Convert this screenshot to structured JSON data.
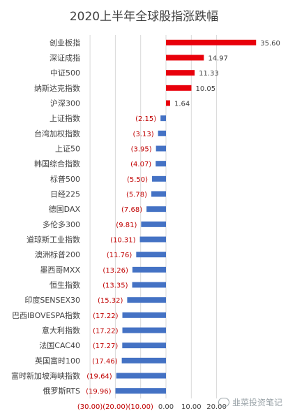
{
  "chart_data": {
    "type": "bar",
    "orientation": "horizontal",
    "title": "2020上半年全球股指涨跌幅",
    "categories": [
      "创业板指",
      "深证成指",
      "中证500",
      "纳斯达克指数",
      "沪深300",
      "上证指数",
      "台湾加权指数",
      "上证50",
      "韩国综合指数",
      "标普500",
      "日经225",
      "德国DAX",
      "多伦多300",
      "道琼斯工业指数",
      "澳洲标普200",
      "墨西哥MXX",
      "恒生指数",
      "印度SENSEX30",
      "巴西IBOVESPA指数",
      "意大利指数",
      "法国CAC40",
      "英国富时100",
      "富时新加坡海峡指数",
      "俄罗斯RTS"
    ],
    "values": [
      35.6,
      14.97,
      11.33,
      10.05,
      1.64,
      -2.15,
      -3.13,
      -3.95,
      -4.07,
      -5.5,
      -5.78,
      -7.68,
      -9.81,
      -10.31,
      -11.76,
      -13.26,
      -13.35,
      -15.32,
      -17.22,
      -17.22,
      -17.27,
      -17.46,
      -19.64,
      -19.96
    ],
    "data_labels": [
      "35.60",
      "14.97",
      "11.33",
      "10.05",
      "1.64",
      "(2.15)",
      "(3.13)",
      "(3.95)",
      "(4.07)",
      "(5.50)",
      "(5.78)",
      "(7.68)",
      "(9.81)",
      "(10.31)",
      "(11.76)",
      "(13.26)",
      "(13.35)",
      "(15.32)",
      "(17.22)",
      "(17.22)",
      "(17.27)",
      "(17.46)",
      "(19.64)",
      "(19.96)"
    ],
    "xlim": [
      -30,
      40
    ],
    "xticks": [
      -30,
      -20,
      -10,
      0,
      10,
      20
    ],
    "xtick_labels": [
      "(30.00)",
      "(20.00)",
      "(10.00)",
      "0.00",
      "10.00",
      "20.00"
    ],
    "grid": true,
    "colors": {
      "positive": "#e8000b",
      "negative": "#4472c4",
      "negative_label": "#c00000",
      "positive_label": "#404040",
      "grid": "#d9d9d9"
    }
  },
  "watermark": "韭菜投资笔记"
}
